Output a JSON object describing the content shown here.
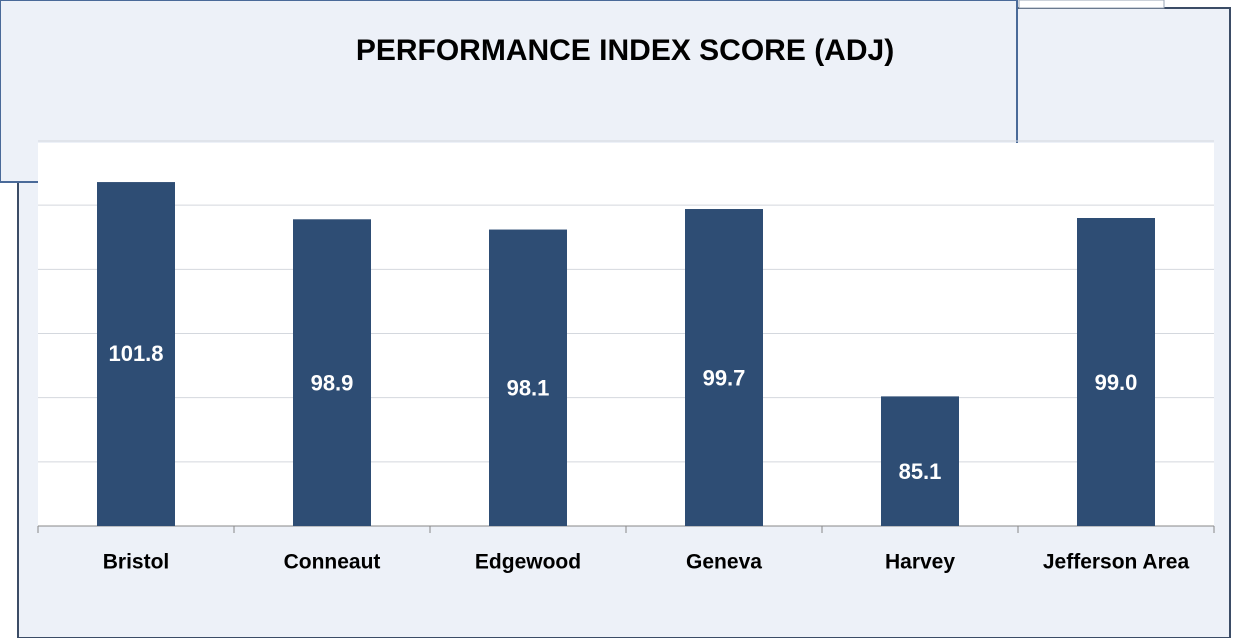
{
  "chart_data": {
    "type": "bar",
    "title": "PERFORMANCE INDEX SCORE (ADJ)",
    "categories": [
      "Bristol",
      "Conneaut",
      "Edgewood",
      "Geneva",
      "Harvey",
      "Jefferson Area"
    ],
    "values": [
      101.8,
      98.9,
      98.1,
      99.7,
      85.1,
      99.0
    ],
    "value_labels": [
      "101.8",
      "98.9",
      "98.1",
      "99.7",
      "85.1",
      "99.0"
    ],
    "color": "#2e4d74",
    "ylim": [
      75,
      105
    ],
    "yticks": [
      75,
      80,
      85,
      90,
      95,
      100,
      105
    ],
    "grid": true
  }
}
